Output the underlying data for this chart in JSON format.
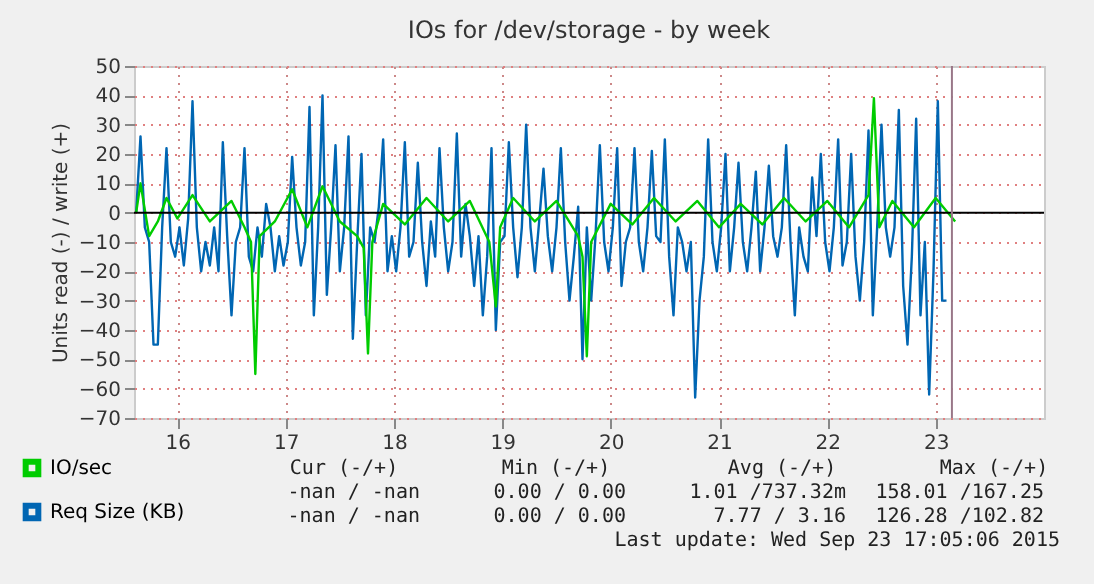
{
  "chart_data": {
    "type": "line",
    "title": "IOs for /dev/storage - by week",
    "ylabel": "Units read (-) / write (+)",
    "xlim": [
      15.6,
      24.0
    ],
    "xticks": [
      16,
      17,
      18,
      19,
      20,
      21,
      22,
      23
    ],
    "ylim": [
      -70,
      50
    ],
    "yticks": [
      -70,
      -60,
      -50,
      -40,
      -30,
      -20,
      -10,
      0,
      10,
      20,
      30,
      40,
      50
    ],
    "grid": true,
    "legend": "bottom",
    "line_style": "solid",
    "marker": "none",
    "series": [
      {
        "name": "Req Size (KB)",
        "color": "#0066b3",
        "x": [
          15.62,
          15.66,
          15.7,
          15.74,
          15.78,
          15.82,
          15.86,
          15.9,
          15.94,
          15.98,
          16.02,
          16.06,
          16.1,
          16.14,
          16.18,
          16.22,
          16.26,
          16.3,
          16.34,
          16.38,
          16.42,
          16.46,
          16.5,
          16.54,
          16.58,
          16.62,
          16.66,
          16.7,
          16.74,
          16.78,
          16.82,
          16.86,
          16.9,
          16.94,
          16.98,
          17.02,
          17.06,
          17.1,
          17.14,
          17.18,
          17.22,
          17.26,
          17.3,
          17.34,
          17.38,
          17.42,
          17.46,
          17.5,
          17.54,
          17.58,
          17.62,
          17.66,
          17.7,
          17.74,
          17.78,
          17.82,
          17.86,
          17.9,
          17.94,
          17.98,
          18.02,
          18.06,
          18.1,
          18.14,
          18.18,
          18.22,
          18.26,
          18.3,
          18.34,
          18.38,
          18.42,
          18.46,
          18.5,
          18.54,
          18.58,
          18.62,
          18.66,
          18.7,
          18.74,
          18.78,
          18.82,
          18.86,
          18.9,
          18.94,
          18.98,
          19.02,
          19.06,
          19.1,
          19.14,
          19.18,
          19.22,
          19.26,
          19.3,
          19.34,
          19.38,
          19.42,
          19.46,
          19.5,
          19.54,
          19.58,
          19.62,
          19.66,
          19.7,
          19.74,
          19.78,
          19.82,
          19.86,
          19.9,
          19.94,
          19.98,
          20.02,
          20.06,
          20.1,
          20.14,
          20.18,
          20.22,
          20.26,
          20.3,
          20.34,
          20.38,
          20.42,
          20.46,
          20.5,
          20.54,
          20.58,
          20.62,
          20.66,
          20.7,
          20.74,
          20.78,
          20.82,
          20.86,
          20.9,
          20.94,
          20.98,
          21.02,
          21.06,
          21.1,
          21.14,
          21.18,
          21.22,
          21.26,
          21.3,
          21.34,
          21.38,
          21.42,
          21.46,
          21.5,
          21.54,
          21.58,
          21.62,
          21.66,
          21.7,
          21.74,
          21.78,
          21.82,
          21.86,
          21.9,
          21.94,
          21.98,
          22.02,
          22.06,
          22.1,
          22.14,
          22.18,
          22.22,
          22.26,
          22.3,
          22.34,
          22.38,
          22.42,
          22.46,
          22.5,
          22.54,
          22.58,
          22.62,
          22.66,
          22.7,
          22.74,
          22.78,
          22.82,
          22.86,
          22.9,
          22.94,
          22.98,
          23.02,
          23.06,
          23.1
        ],
        "values": [
          0,
          26,
          -5,
          -10,
          -45,
          -45,
          -5,
          22,
          -10,
          -15,
          -5,
          -18,
          -2,
          38,
          -5,
          -20,
          -10,
          -18,
          -5,
          -20,
          24,
          -8,
          -35,
          -10,
          -5,
          22,
          -15,
          -20,
          -5,
          -15,
          3,
          -5,
          -20,
          -8,
          -18,
          -10,
          19,
          -5,
          -18,
          -10,
          36,
          -35,
          -5,
          40,
          -28,
          -5,
          23,
          -20,
          -5,
          26,
          -43,
          -10,
          20,
          -35,
          -5,
          -10,
          2,
          25,
          -20,
          -8,
          -20,
          -5,
          24,
          -15,
          -10,
          17,
          -10,
          -25,
          -3,
          -15,
          22,
          -5,
          -20,
          -10,
          27,
          -15,
          3,
          -8,
          -25,
          -8,
          -35,
          -15,
          22,
          -40,
          -10,
          -8,
          24,
          -5,
          -22,
          -5,
          30,
          -5,
          -20,
          -3,
          15,
          -8,
          -20,
          -5,
          22,
          -10,
          -30,
          -15,
          2,
          -50,
          -5,
          -30,
          -8,
          23,
          -10,
          -20,
          -5,
          22,
          -25,
          -10,
          -5,
          22,
          -10,
          -20,
          -5,
          21,
          -8,
          -10,
          25,
          -15,
          -35,
          -5,
          -10,
          -20,
          -10,
          -63,
          -30,
          -15,
          25,
          -10,
          -20,
          -5,
          20,
          -20,
          -5,
          17,
          -10,
          -20,
          -5,
          14,
          -20,
          -5,
          16,
          -8,
          -15,
          -5,
          23,
          -10,
          -35,
          -5,
          -15,
          -20,
          12,
          -8,
          20,
          -10,
          -20,
          -5,
          25,
          -18,
          -10,
          20,
          -15,
          -30,
          -10,
          28,
          -35,
          -5,
          30,
          -5,
          -15,
          -5,
          35,
          -25,
          -45,
          -15,
          32,
          -35,
          -10,
          -62,
          -20,
          38,
          -30,
          -30
        ]
      },
      {
        "name": "IO/sec",
        "color": "#00cc00",
        "x": [
          15.62,
          15.66,
          15.74,
          15.82,
          15.9,
          16.0,
          16.14,
          16.3,
          16.5,
          16.62,
          16.68,
          16.72,
          16.76,
          16.9,
          17.06,
          17.2,
          17.34,
          17.5,
          17.66,
          17.72,
          17.76,
          17.8,
          17.9,
          18.1,
          18.3,
          18.5,
          18.7,
          18.88,
          18.94,
          18.98,
          19.1,
          19.3,
          19.5,
          19.7,
          19.74,
          19.78,
          19.82,
          20.0,
          20.2,
          20.4,
          20.6,
          20.8,
          21.0,
          21.2,
          21.4,
          21.6,
          21.8,
          22.0,
          22.2,
          22.38,
          22.43,
          22.48,
          22.6,
          22.8,
          23.0,
          23.18
        ],
        "values": [
          0,
          10,
          -8,
          -3,
          5,
          -2,
          6,
          -3,
          4,
          -5,
          -10,
          -55,
          -8,
          -3,
          8,
          -5,
          9,
          -3,
          -8,
          -12,
          -48,
          -10,
          3,
          -4,
          5,
          -3,
          4,
          -10,
          -32,
          -5,
          5,
          -3,
          4,
          -8,
          -15,
          -49,
          -10,
          3,
          -4,
          5,
          -3,
          4,
          -5,
          3,
          -4,
          5,
          -3,
          4,
          -5,
          6,
          39,
          -5,
          4,
          -5,
          5,
          -3
        ]
      }
    ],
    "ref_lines": [
      {
        "axis": "y",
        "value": 0,
        "color": "#000000"
      },
      {
        "axis": "x",
        "value": 23.15,
        "color": "#997788"
      }
    ],
    "annotations": [
      "Cur (-/+)",
      "Min (-/+)",
      "Avg (-/+)",
      "Max (-/+)",
      "-nan /  -nan",
      "0.00 /  0.00",
      "1.01 /737.32m",
      "158.01 /167.25",
      "-nan /  -nan",
      "0.00 /  0.00",
      "7.77 /   3.16",
      "126.28 /102.82",
      "Last update: Wed Sep 23 17:05:06 2015"
    ]
  }
}
